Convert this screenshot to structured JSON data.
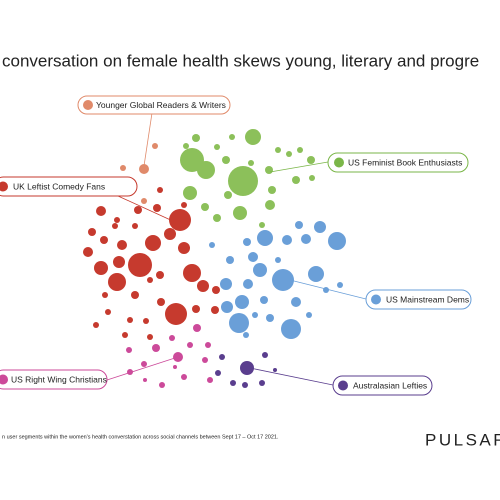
{
  "header": {
    "title": "conversation on female health skews young, literary and progre"
  },
  "segments": [
    {
      "label": "Younger Global Readers & Writers"
    },
    {
      "label": "US Feminist Book Enthusiasts"
    },
    {
      "label": "UK Leftist Comedy Fans"
    },
    {
      "label": "US Mainstream Dems"
    },
    {
      "label": "US Right Wing Christians"
    },
    {
      "label": "Australasian Lefties"
    }
  ],
  "footer": {
    "note": "n user segments within the women's health converstation across social channels between Sept 17 – Oct 17 2021.",
    "logo": "PULSAR"
  }
}
